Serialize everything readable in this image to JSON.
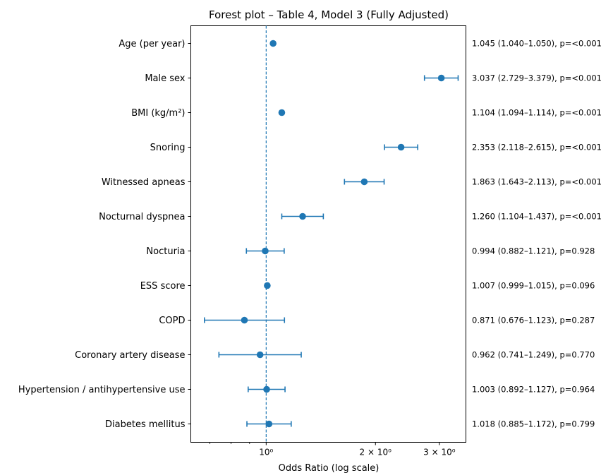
{
  "chart_data": {
    "type": "scatter",
    "title": "Forest plot – Table 4, Model 3 (Fully Adjusted)",
    "xlabel": "Odds Ratio (log scale)",
    "ylabel": "",
    "xscale": "log",
    "xlim": [
      0.62,
      3.55
    ],
    "reference_line": 1.0,
    "grid": false,
    "color": "#1f77b4",
    "xticks": [
      {
        "value": 1.0,
        "label": "10⁰"
      },
      {
        "value": 2.0,
        "label": "2 × 10⁰"
      },
      {
        "value": 3.0,
        "label": "3 × 10⁰"
      }
    ],
    "minor_ticks": [
      0.7,
      0.8,
      0.9
    ],
    "rows": [
      {
        "label": "Age (per year)",
        "or": 1.045,
        "lo": 1.04,
        "hi": 1.05,
        "annotation": "1.045 (1.040–1.050), p=<0.001"
      },
      {
        "label": "Male sex",
        "or": 3.037,
        "lo": 2.729,
        "hi": 3.379,
        "annotation": "3.037 (2.729–3.379), p=<0.001"
      },
      {
        "label": "BMI (kg/m²)",
        "or": 1.104,
        "lo": 1.094,
        "hi": 1.114,
        "annotation": "1.104 (1.094–1.114), p=<0.001"
      },
      {
        "label": "Snoring",
        "or": 2.353,
        "lo": 2.118,
        "hi": 2.615,
        "annotation": "2.353 (2.118–2.615), p=<0.001"
      },
      {
        "label": "Witnessed apneas",
        "or": 1.863,
        "lo": 1.643,
        "hi": 2.113,
        "annotation": "1.863 (1.643–2.113), p=<0.001"
      },
      {
        "label": "Nocturnal dyspnea",
        "or": 1.26,
        "lo": 1.104,
        "hi": 1.437,
        "annotation": "1.260 (1.104–1.437), p=<0.001"
      },
      {
        "label": "Nocturia",
        "or": 0.994,
        "lo": 0.882,
        "hi": 1.121,
        "annotation": "0.994 (0.882–1.121), p=0.928"
      },
      {
        "label": "ESS score",
        "or": 1.007,
        "lo": 0.999,
        "hi": 1.015,
        "annotation": "1.007 (0.999–1.015), p=0.096"
      },
      {
        "label": "COPD",
        "or": 0.871,
        "lo": 0.676,
        "hi": 1.123,
        "annotation": "0.871 (0.676–1.123), p=0.287"
      },
      {
        "label": "Coronary artery disease",
        "or": 0.962,
        "lo": 0.741,
        "hi": 1.249,
        "annotation": "0.962 (0.741–1.249), p=0.770"
      },
      {
        "label": "Hypertension / antihypertensive use",
        "or": 1.003,
        "lo": 0.892,
        "hi": 1.127,
        "annotation": "1.003 (0.892–1.127), p=0.964"
      },
      {
        "label": "Diabetes mellitus",
        "or": 1.018,
        "lo": 0.885,
        "hi": 1.172,
        "annotation": "1.018 (0.885–1.172), p=0.799"
      }
    ]
  }
}
